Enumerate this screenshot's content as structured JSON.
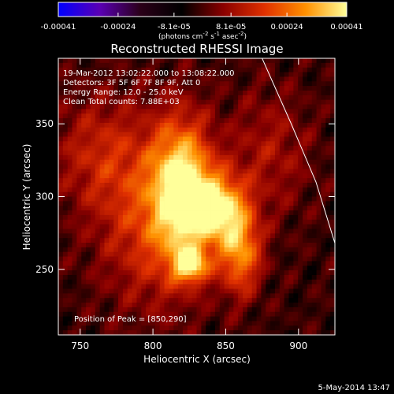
{
  "chart_data": {
    "type": "heatmap",
    "title": "Reconstructed RHESSI Image",
    "xlabel": "Heliocentric X (arcsec)",
    "ylabel": "Heliocentric Y (arcsec)",
    "xlim": [
      735,
      925
    ],
    "ylim": [
      205,
      395
    ],
    "x_ticks": [
      {
        "value": 750,
        "label": "750"
      },
      {
        "value": 800,
        "label": "800"
      },
      {
        "value": 850,
        "label": "850"
      },
      {
        "value": 900,
        "label": "900"
      }
    ],
    "y_ticks": [
      {
        "value": 250,
        "label": "250"
      },
      {
        "value": 300,
        "label": "300"
      },
      {
        "value": 350,
        "label": "350"
      }
    ],
    "annotations": [
      "19-Mar-2012 13:02:22.000 to 13:08:22.000",
      "Detectors: 3F 5F 6F 7F 8F 9F, Att 0",
      "Energy Range: 12.0 - 25.0 keV",
      "Clean     Total counts: 7.88E+03"
    ],
    "peak_label": "Position of Peak = [850,290]",
    "peak_position": [
      850,
      290
    ],
    "colorbar": {
      "range": [
        -0.00041,
        0.00041
      ],
      "tick_values": [
        -0.00041,
        -0.00024,
        -8.1e-05,
        8.1e-05,
        0.00024,
        0.00041
      ],
      "tick_labels": [
        "-0.00041",
        "-0.00024",
        "-8.1e-05",
        "8.1e-05",
        "0.00024",
        "0.00041"
      ],
      "unit_prefix": "(photons cm",
      "unit_exp1": "-2",
      "unit_mid": " s",
      "unit_exp2": "-1",
      "unit_mid2": " asec",
      "unit_exp3": "-2",
      "unit_suffix": ")",
      "colors": [
        "#0000ff",
        "#5a00b4",
        "#2a0018",
        "#000000",
        "#8a0000",
        "#e03000",
        "#ff9000",
        "#ffff9a"
      ]
    },
    "heatmap_sources": [
      {
        "x": 820,
        "y": 305,
        "sx": 14,
        "sy": 32,
        "amp": 0.95
      },
      {
        "x": 845,
        "y": 292,
        "sx": 13,
        "sy": 16,
        "amp": 0.85
      },
      {
        "x": 860,
        "y": 262,
        "sx": 10,
        "sy": 20,
        "amp": 0.7
      },
      {
        "x": 826,
        "y": 253,
        "sx": 8,
        "sy": 8,
        "amp": 0.8
      },
      {
        "x": 800,
        "y": 285,
        "sx": 26,
        "sy": 42,
        "amp": 0.45
      },
      {
        "x": 762,
        "y": 330,
        "sx": 22,
        "sy": 28,
        "amp": 0.3
      },
      {
        "x": 880,
        "y": 330,
        "sx": 20,
        "sy": 30,
        "amp": 0.25
      }
    ],
    "limb_curve": [
      [
        875,
        395
      ],
      [
        895,
        350
      ],
      [
        912,
        310
      ],
      [
        925,
        268
      ]
    ]
  },
  "footer": {
    "date": "5-May-2014 13:47"
  }
}
